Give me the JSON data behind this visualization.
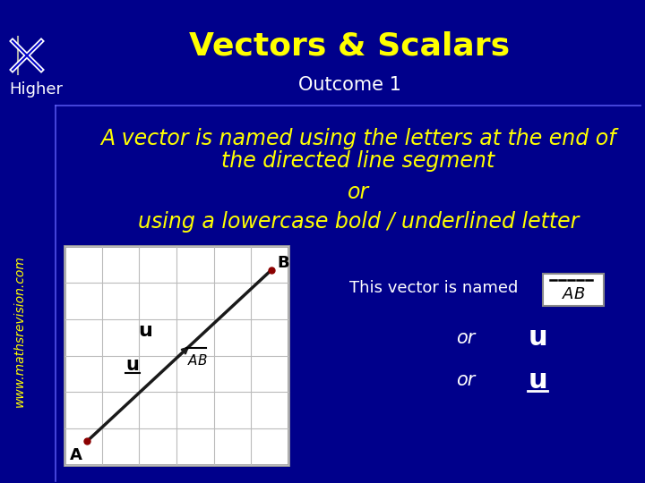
{
  "title": "Vectors & Scalars",
  "outcome": "Outcome 1",
  "higher": "Higher",
  "website": "www.mathsrevision.com",
  "line1": "A vector is named using the letters at the end of",
  "line2": "the directed line segment",
  "or1": "or",
  "line3": "using a lowercase bold / underlined letter",
  "this_vector": "This vector is named",
  "or2": "or",
  "or3": "or",
  "bg_color": "#00008B",
  "title_color": "#FFFF00",
  "outcome_color": "#FFFFFF",
  "body_color": "#FFFF00",
  "white": "#FFFFFF",
  "black": "#000000",
  "grid_bg": "#FFFFFF",
  "grid_border": "#999999",
  "title_fontsize": 26,
  "outcome_fontsize": 15,
  "body_fontsize": 17,
  "higher_fontsize": 13,
  "web_fontsize": 10,
  "annot_fontsize": 14
}
